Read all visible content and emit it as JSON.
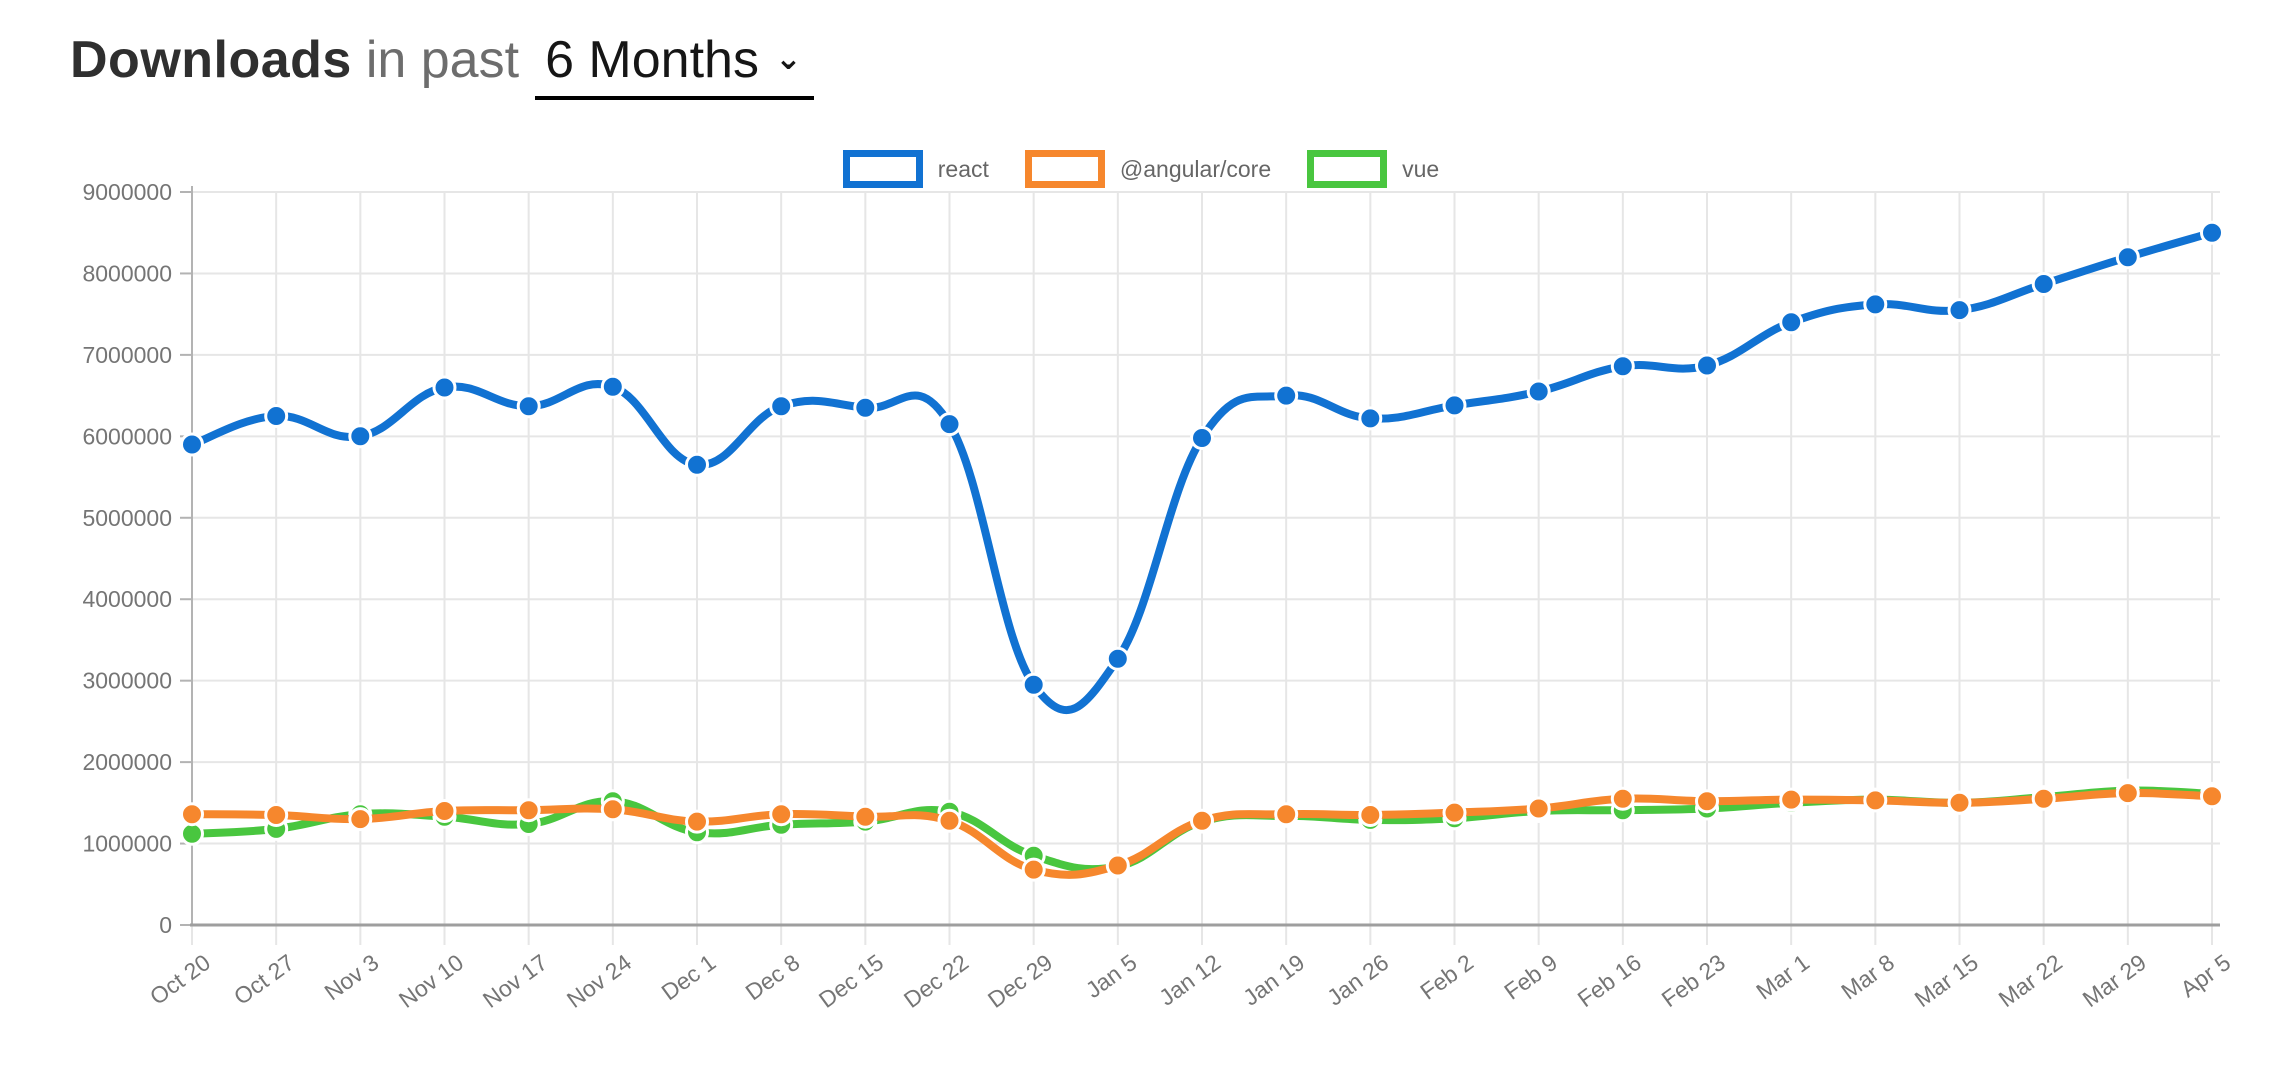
{
  "header": {
    "title_bold": "Downloads",
    "title_mid": "in past",
    "range_label": "6 Months",
    "chevron_glyph": "⌄"
  },
  "chart_data": {
    "type": "line",
    "title": "Downloads in past 6 Months",
    "legend_position": "top",
    "grid": true,
    "ylim": [
      0,
      9000000
    ],
    "y_ticks": [
      0,
      1000000,
      2000000,
      3000000,
      4000000,
      5000000,
      6000000,
      7000000,
      8000000,
      9000000
    ],
    "x_labels": [
      "Oct 20",
      "Oct 27",
      "Nov 3",
      "Nov 10",
      "Nov 17",
      "Nov 24",
      "Dec 1",
      "Dec 8",
      "Dec 15",
      "Dec 22",
      "Dec 29",
      "Jan 5",
      "Jan 12",
      "Jan 19",
      "Jan 26",
      "Feb 2",
      "Feb 9",
      "Feb 16",
      "Feb 23",
      "Mar 1",
      "Mar 8",
      "Mar 15",
      "Mar 22",
      "Mar 29",
      "Apr 5"
    ],
    "series": [
      {
        "name": "react",
        "color": "#1172d2",
        "values": [
          5900000,
          6250000,
          6000000,
          6600000,
          6370000,
          6610000,
          5650000,
          6370000,
          6350000,
          6150000,
          2950000,
          3270000,
          5980000,
          6500000,
          6220000,
          6380000,
          6550000,
          6860000,
          6870000,
          7400000,
          7620000,
          7550000,
          7870000,
          8200000,
          8500000
        ]
      },
      {
        "name": "@angular/core",
        "color": "#f6872d",
        "values": [
          1360000,
          1350000,
          1300000,
          1400000,
          1410000,
          1420000,
          1270000,
          1360000,
          1330000,
          1280000,
          680000,
          730000,
          1280000,
          1360000,
          1350000,
          1380000,
          1430000,
          1550000,
          1520000,
          1540000,
          1530000,
          1500000,
          1550000,
          1620000,
          1580000
        ]
      },
      {
        "name": "vue",
        "color": "#49c63f",
        "values": [
          1120000,
          1180000,
          1360000,
          1330000,
          1240000,
          1520000,
          1140000,
          1230000,
          1270000,
          1390000,
          850000,
          720000,
          1270000,
          1340000,
          1290000,
          1310000,
          1400000,
          1410000,
          1430000,
          1500000,
          1540000,
          1500000,
          1570000,
          1650000,
          1610000
        ]
      }
    ]
  },
  "style_colors": {
    "grid": "#e6e6e6",
    "axis_line": "#b3b3b3",
    "axis_bottom": "#9e9e9e",
    "tick_label": "#757575",
    "legend_label": "#666666",
    "point_border": "#ffffff"
  }
}
